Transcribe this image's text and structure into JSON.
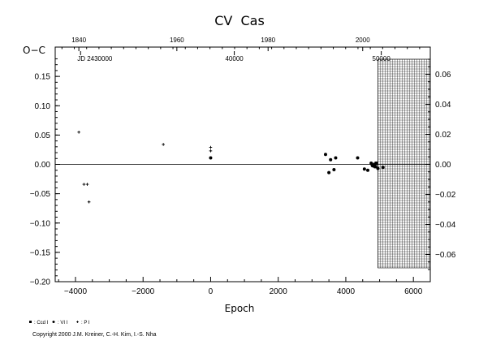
{
  "chart_data": {
    "type": "scatter",
    "title": "CV  Cas",
    "ylabel": "O−C",
    "xlabel": "Epoch",
    "xlim": [
      -4600,
      6500
    ],
    "ylim": [
      -0.2,
      0.2
    ],
    "x_ticks": [
      "−4000",
      "−2000",
      "0",
      "2000",
      "4000",
      "6000"
    ],
    "y_ticks_left": [
      "0.15",
      "0.10",
      "0.05",
      "0.00",
      "−0.05",
      "−0.10",
      "−0.15",
      "−0.20"
    ],
    "y_ticks_right": [
      "0.06",
      "0.04",
      "0.02",
      "0.00",
      "−0.02",
      "−0.04",
      "−0.06"
    ],
    "top_year_ticks": [
      "1840",
      "1960",
      "1980",
      "2000"
    ],
    "jd_ticks": [
      "JD 2430000",
      "40000",
      "50000"
    ],
    "zero_line": true,
    "hatched_region": {
      "x_from": 4950,
      "x_to": 6500
    },
    "series": [
      {
        "name": "Ccd",
        "marker": "square",
        "points": [
          [
            4800,
            -0.002
          ],
          [
            4850,
            0.0
          ],
          [
            4880,
            -0.004
          ],
          [
            4900,
            0.002
          ]
        ]
      },
      {
        "name": "Vi",
        "marker": "circle",
        "points": [
          [
            3400,
            0.017
          ],
          [
            3500,
            -0.014
          ],
          [
            3550,
            0.008
          ],
          [
            3650,
            -0.009
          ],
          [
            3700,
            0.011
          ],
          [
            4350,
            0.011
          ],
          [
            4550,
            -0.008
          ],
          [
            4650,
            -0.01
          ],
          [
            4750,
            0.002
          ],
          [
            4780,
            -0.001
          ],
          [
            4820,
            -0.003
          ],
          [
            4950,
            -0.007
          ],
          [
            5100,
            -0.005
          ],
          [
            0,
            0.011
          ]
        ]
      },
      {
        "name": "Pl",
        "marker": "plus",
        "points": [
          [
            -3900,
            0.055
          ],
          [
            -3750,
            -0.034
          ],
          [
            -3650,
            -0.034
          ],
          [
            -3600,
            -0.064
          ],
          [
            -1400,
            0.034
          ],
          [
            0,
            0.029
          ],
          [
            0,
            0.023
          ]
        ]
      }
    ],
    "legend": {
      "position": "bottom-left",
      "entries": [
        ": Ccd I",
        ": VI I",
        ": P I"
      ]
    }
  },
  "footer": {
    "copyright": "Copyright 2000 J.M. Kreiner, C.-H. Kim, I.-S. Nha"
  }
}
